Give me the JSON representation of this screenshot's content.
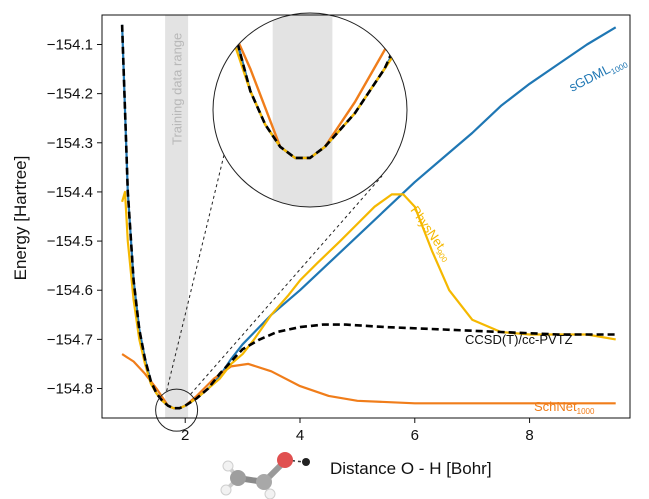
{
  "chart_data": {
    "type": "line",
    "xlabel": "Distance O - H [Bohr]",
    "ylabel": "Energy [Hartree]",
    "xlim": [
      0.55,
      9.75
    ],
    "ylim": [
      -154.86,
      -154.04
    ],
    "xticks": [
      2,
      4,
      6,
      8
    ],
    "yticks": [
      -154.8,
      -154.7,
      -154.6,
      -154.5,
      -154.4,
      -154.3,
      -154.2,
      -154.1
    ],
    "xtick_labels": [
      "2",
      "4",
      "6",
      "8"
    ],
    "ytick_labels": [
      "−154.8",
      "−154.7",
      "−154.6",
      "−154.5",
      "−154.4",
      "−154.3",
      "−154.2",
      "−154.1"
    ],
    "training_range": {
      "label": "Training data range",
      "x": [
        1.65,
        2.05
      ]
    },
    "inset": "zoom of the minimum region",
    "series": [
      {
        "name": "CCSD(T)/cc-PVTZ",
        "color": "#000000",
        "style": "dashed",
        "points": [
          [
            0.9,
            -154.06
          ],
          [
            1.0,
            -154.4
          ],
          [
            1.1,
            -154.58
          ],
          [
            1.2,
            -154.68
          ],
          [
            1.3,
            -154.74
          ],
          [
            1.4,
            -154.785
          ],
          [
            1.5,
            -154.81
          ],
          [
            1.6,
            -154.825
          ],
          [
            1.7,
            -154.835
          ],
          [
            1.8,
            -154.84
          ],
          [
            1.9,
            -154.84
          ],
          [
            2.0,
            -154.835
          ],
          [
            2.2,
            -154.82
          ],
          [
            2.4,
            -154.8
          ],
          [
            2.6,
            -154.77
          ],
          [
            2.8,
            -154.745
          ],
          [
            3.0,
            -154.72
          ],
          [
            3.3,
            -154.7
          ],
          [
            3.6,
            -154.685
          ],
          [
            4.0,
            -154.675
          ],
          [
            4.4,
            -154.67
          ],
          [
            4.8,
            -154.67
          ],
          [
            5.5,
            -154.675
          ],
          [
            6.5,
            -154.68
          ],
          [
            7.5,
            -154.685
          ],
          [
            8.5,
            -154.69
          ],
          [
            9.5,
            -154.69
          ]
        ]
      },
      {
        "name": "sGDML",
        "subscript": "1000",
        "color": "#1f77b4",
        "style": "solid",
        "points": [
          [
            0.9,
            -154.06
          ],
          [
            1.0,
            -154.4
          ],
          [
            1.1,
            -154.58
          ],
          [
            1.2,
            -154.68
          ],
          [
            1.3,
            -154.74
          ],
          [
            1.4,
            -154.785
          ],
          [
            1.5,
            -154.81
          ],
          [
            1.6,
            -154.825
          ],
          [
            1.7,
            -154.835
          ],
          [
            1.8,
            -154.84
          ],
          [
            1.9,
            -154.84
          ],
          [
            2.0,
            -154.835
          ],
          [
            2.2,
            -154.82
          ],
          [
            2.4,
            -154.8
          ],
          [
            2.6,
            -154.775
          ],
          [
            2.8,
            -154.74
          ],
          [
            3.0,
            -154.71
          ],
          [
            3.5,
            -154.65
          ],
          [
            4.0,
            -154.6
          ],
          [
            4.5,
            -154.545
          ],
          [
            5.0,
            -154.49
          ],
          [
            5.5,
            -154.435
          ],
          [
            6.0,
            -154.38
          ],
          [
            6.5,
            -154.33
          ],
          [
            7.0,
            -154.28
          ],
          [
            7.5,
            -154.225
          ],
          [
            8.0,
            -154.18
          ],
          [
            8.5,
            -154.14
          ],
          [
            9.0,
            -154.1
          ],
          [
            9.5,
            -154.065
          ]
        ]
      },
      {
        "name": "PhysNet",
        "subscript": "900",
        "color": "#f5b800",
        "style": "solid",
        "points": [
          [
            0.9,
            -154.42
          ],
          [
            0.95,
            -154.4
          ],
          [
            1.0,
            -154.5
          ],
          [
            1.1,
            -154.62
          ],
          [
            1.2,
            -154.7
          ],
          [
            1.3,
            -154.75
          ],
          [
            1.4,
            -154.79
          ],
          [
            1.5,
            -154.81
          ],
          [
            1.6,
            -154.825
          ],
          [
            1.7,
            -154.835
          ],
          [
            1.8,
            -154.84
          ],
          [
            1.9,
            -154.84
          ],
          [
            2.0,
            -154.835
          ],
          [
            2.2,
            -154.82
          ],
          [
            2.4,
            -154.8
          ],
          [
            2.6,
            -154.78
          ],
          [
            2.8,
            -154.75
          ],
          [
            3.0,
            -154.73
          ],
          [
            3.2,
            -154.7
          ],
          [
            3.5,
            -154.65
          ],
          [
            3.8,
            -154.61
          ],
          [
            4.0,
            -154.58
          ],
          [
            4.3,
            -154.545
          ],
          [
            4.7,
            -154.5
          ],
          [
            5.0,
            -154.465
          ],
          [
            5.3,
            -154.43
          ],
          [
            5.6,
            -154.405
          ],
          [
            5.8,
            -154.405
          ],
          [
            6.0,
            -154.43
          ],
          [
            6.3,
            -154.52
          ],
          [
            6.6,
            -154.6
          ],
          [
            7.0,
            -154.66
          ],
          [
            7.5,
            -154.685
          ],
          [
            8.0,
            -154.69
          ],
          [
            8.5,
            -154.69
          ],
          [
            9.0,
            -154.69
          ],
          [
            9.5,
            -154.7
          ]
        ]
      },
      {
        "name": "SchNet",
        "subscript": "1000",
        "color": "#f07d1a",
        "style": "solid",
        "points": [
          [
            0.9,
            -154.73
          ],
          [
            1.1,
            -154.745
          ],
          [
            1.3,
            -154.77
          ],
          [
            1.5,
            -154.8
          ],
          [
            1.7,
            -154.835
          ],
          [
            1.8,
            -154.84
          ],
          [
            1.9,
            -154.84
          ],
          [
            2.0,
            -154.835
          ],
          [
            2.2,
            -154.815
          ],
          [
            2.5,
            -154.78
          ],
          [
            2.8,
            -154.755
          ],
          [
            3.1,
            -154.75
          ],
          [
            3.5,
            -154.765
          ],
          [
            4.0,
            -154.795
          ],
          [
            4.5,
            -154.815
          ],
          [
            5.0,
            -154.825
          ],
          [
            6.0,
            -154.83
          ],
          [
            7.0,
            -154.83
          ],
          [
            8.0,
            -154.83
          ],
          [
            9.5,
            -154.83
          ]
        ]
      }
    ]
  }
}
